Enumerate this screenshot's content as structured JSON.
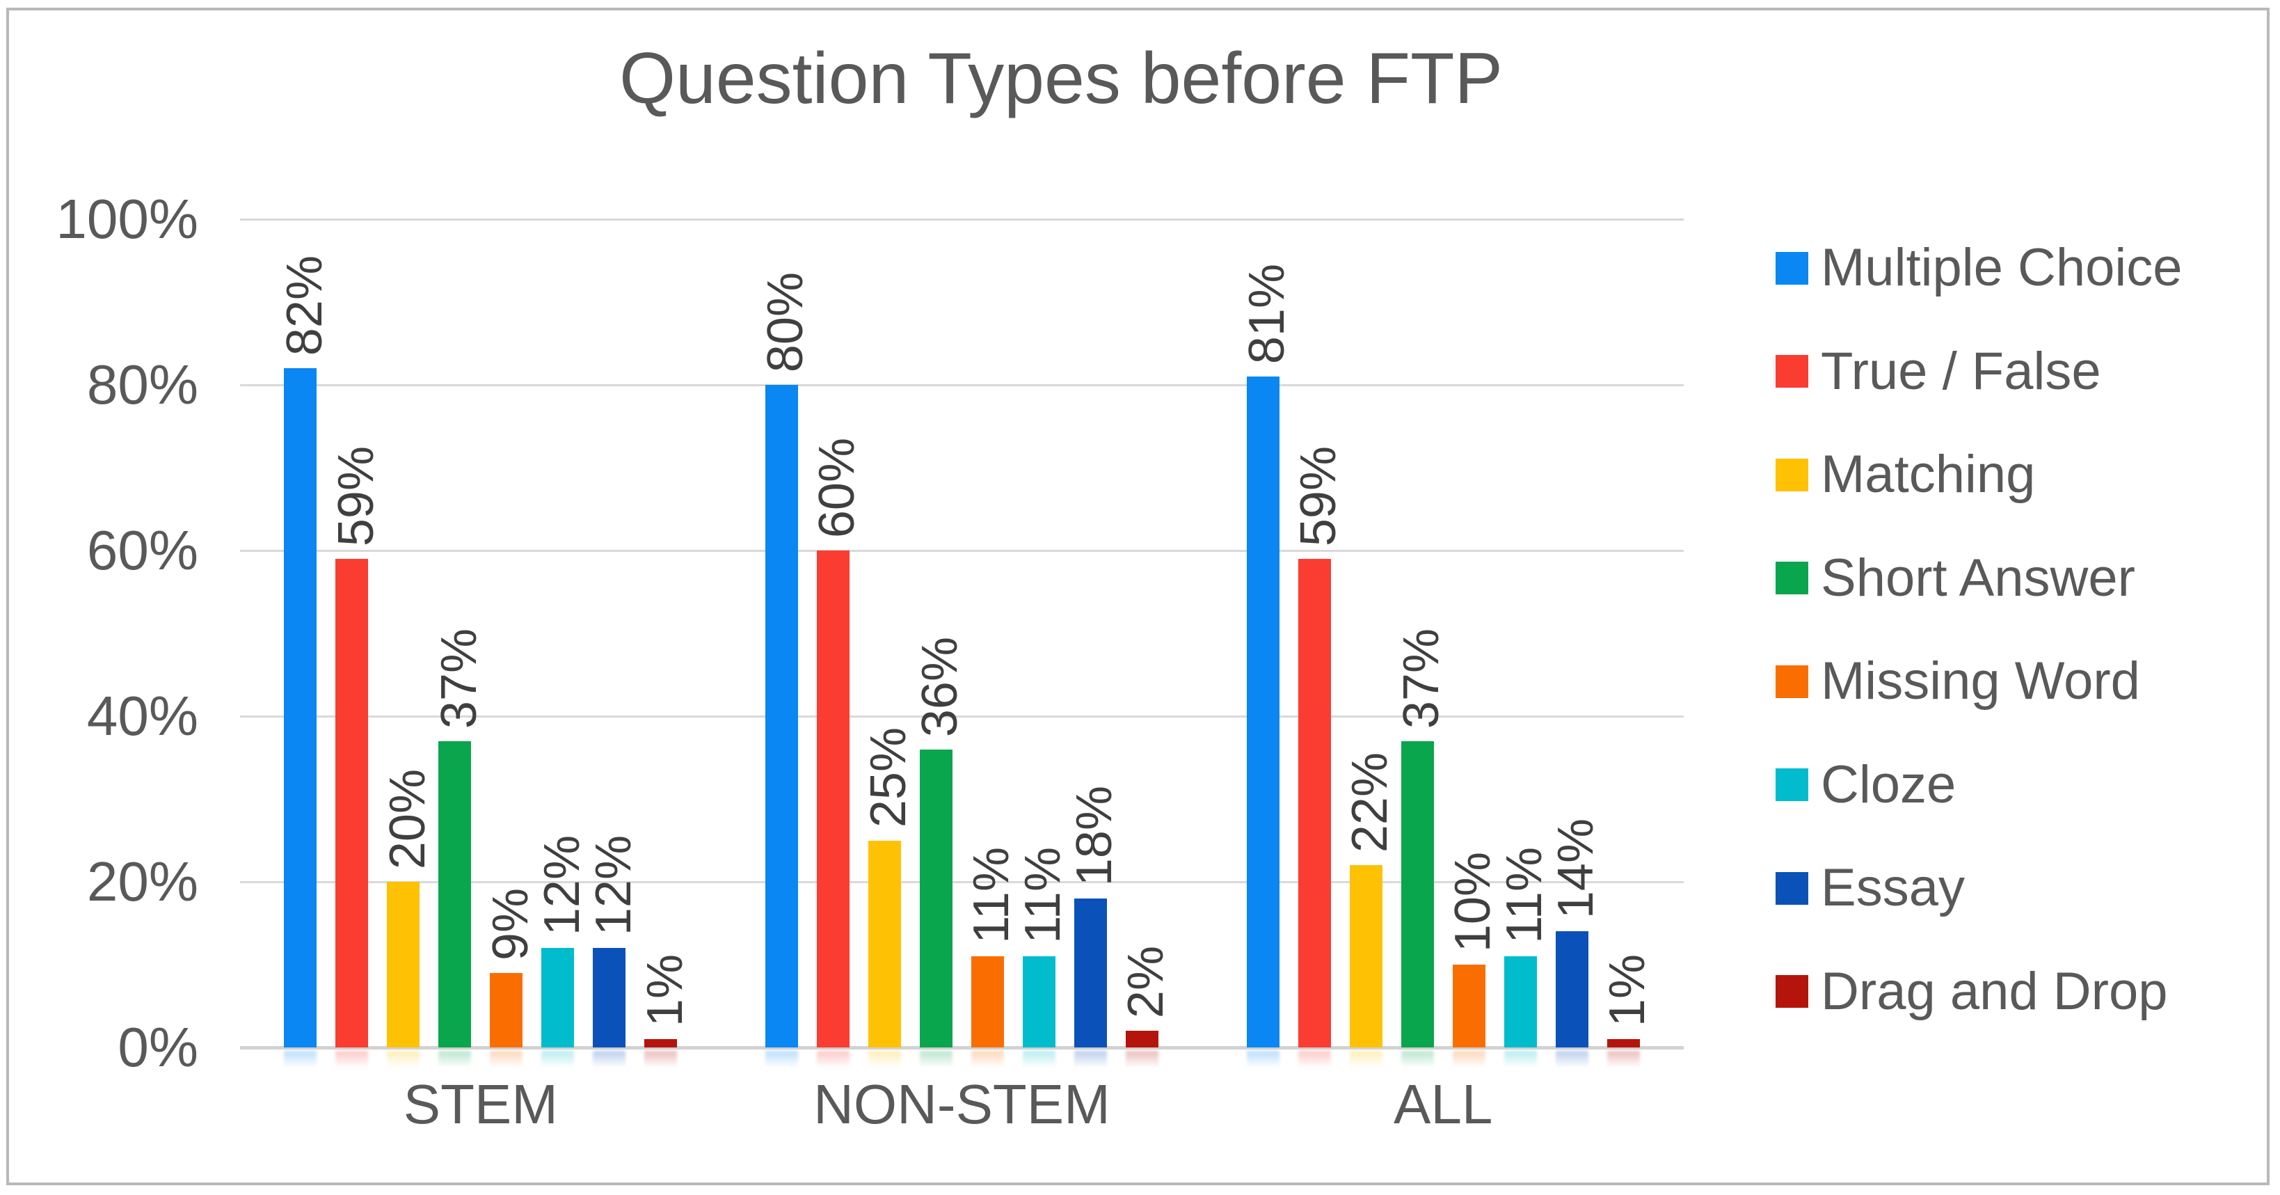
{
  "frame": {
    "border_color": "#b9b9b9",
    "background": "#ffffff"
  },
  "chart_data": {
    "type": "bar",
    "title": "Question Types before FTP",
    "categories": [
      "STEM",
      "NON-STEM",
      "ALL"
    ],
    "series": [
      {
        "name": "Multiple Choice",
        "color": "#0a87f2",
        "values": [
          82,
          80,
          81
        ]
      },
      {
        "name": "True / False",
        "color": "#fb3c30",
        "values": [
          59,
          60,
          59
        ]
      },
      {
        "name": "Matching",
        "color": "#ffc103",
        "values": [
          20,
          25,
          22
        ]
      },
      {
        "name": "Short Answer",
        "color": "#09a64e",
        "values": [
          37,
          36,
          37
        ]
      },
      {
        "name": "Missing Word",
        "color": "#fa6e01",
        "values": [
          9,
          11,
          10
        ]
      },
      {
        "name": "Cloze",
        "color": "#00bccc",
        "values": [
          12,
          11,
          11
        ]
      },
      {
        "name": "Essay",
        "color": "#0b51ba",
        "values": [
          12,
          18,
          14
        ]
      },
      {
        "name": "Drag and Drop",
        "color": "#b5140c",
        "values": [
          1,
          2,
          1
        ]
      }
    ],
    "y_axis": {
      "min": 0,
      "max": 100,
      "tick_step": 20,
      "tick_labels": [
        "100%",
        "80%",
        "60%",
        "40%",
        "20%",
        "0%"
      ],
      "unit": "%"
    },
    "data_label_suffix": "%",
    "data_label_rotation_deg": -90,
    "legend_position": "right",
    "gridlines": true,
    "text_color": "#595959",
    "data_label_color": "#3f3f3f",
    "gridline_color": "#d9d9d9"
  }
}
